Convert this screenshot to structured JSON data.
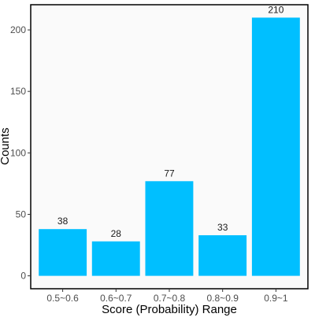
{
  "chart_data": {
    "type": "bar",
    "categories": [
      "0.5~0.6",
      "0.6~0.7",
      "0.7~0.8",
      "0.8~0.9",
      "0.9~1"
    ],
    "values": [
      38,
      28,
      77,
      33,
      210
    ],
    "data_labels": [
      "38",
      "28",
      "77",
      "33",
      "210"
    ],
    "title": "",
    "xlabel": "Score (Probability) Range",
    "ylabel": "Counts",
    "ylim": [
      -10.5,
      220.5
    ],
    "yticks": [
      0,
      50,
      100,
      150,
      200
    ],
    "ytick_labels": [
      "0",
      "50",
      "100",
      "150",
      "200"
    ],
    "grid": false,
    "bar_color": "#00bfff",
    "panel_background": "#fafafa",
    "border_color": "#000000"
  }
}
